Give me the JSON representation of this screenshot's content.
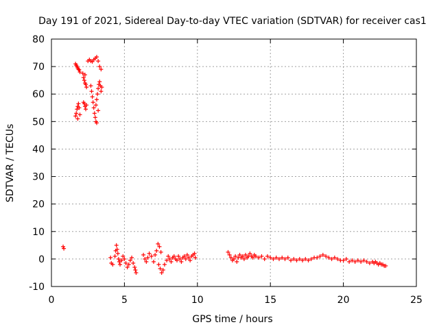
{
  "chart_data": {
    "type": "scatter",
    "title": "Day 191 of 2021, Sidereal Day-to-day VTEC variation (SDTVAR) for receiver cas1",
    "xlabel": "GPS time / hours",
    "ylabel": "SDTVAR / TECUs",
    "xlim": [
      0,
      25
    ],
    "ylim": [
      -10,
      80
    ],
    "xticks": [
      0,
      5,
      10,
      15,
      20,
      25
    ],
    "yticks": [
      -10,
      0,
      10,
      20,
      30,
      40,
      50,
      60,
      70,
      80
    ],
    "grid": true,
    "marker": "+",
    "color": "#ff0000",
    "series": [
      {
        "name": "cas1",
        "points": [
          [
            0.8,
            4.5
          ],
          [
            0.85,
            3.8
          ],
          [
            1.65,
            71.0
          ],
          [
            1.7,
            70.5
          ],
          [
            1.75,
            70.0
          ],
          [
            1.8,
            69.5
          ],
          [
            1.85,
            69.0
          ],
          [
            1.9,
            68.8
          ],
          [
            1.95,
            68.0
          ],
          [
            1.65,
            52.0
          ],
          [
            1.7,
            53.0
          ],
          [
            1.75,
            54.5
          ],
          [
            1.8,
            55.5
          ],
          [
            1.85,
            56.5
          ],
          [
            1.9,
            55.0
          ],
          [
            1.95,
            52.5
          ],
          [
            1.8,
            51.0
          ],
          [
            2.2,
            57.0
          ],
          [
            2.25,
            56.5
          ],
          [
            2.3,
            55.5
          ],
          [
            2.35,
            54.5
          ],
          [
            2.4,
            56.0
          ],
          [
            2.15,
            67.5
          ],
          [
            2.2,
            66.0
          ],
          [
            2.25,
            65.0
          ],
          [
            2.3,
            64.0
          ],
          [
            2.35,
            63.5
          ],
          [
            2.3,
            67.0
          ],
          [
            2.4,
            62.5
          ],
          [
            2.5,
            72.0
          ],
          [
            2.6,
            72.5
          ],
          [
            2.7,
            72.0
          ],
          [
            2.8,
            71.8
          ],
          [
            2.9,
            72.5
          ],
          [
            3.0,
            73.0
          ],
          [
            3.1,
            73.5
          ],
          [
            3.2,
            72.0
          ],
          [
            3.3,
            70.0
          ],
          [
            3.4,
            69.0
          ],
          [
            2.7,
            63.0
          ],
          [
            2.75,
            61.0
          ],
          [
            2.8,
            59.0
          ],
          [
            2.85,
            57.0
          ],
          [
            2.9,
            55.0
          ],
          [
            2.95,
            53.0
          ],
          [
            3.0,
            51.5
          ],
          [
            3.05,
            50.0
          ],
          [
            3.1,
            49.5
          ],
          [
            3.05,
            56.0
          ],
          [
            3.1,
            58.0
          ],
          [
            3.15,
            60.0
          ],
          [
            3.2,
            62.0
          ],
          [
            3.25,
            63.5
          ],
          [
            3.3,
            64.5
          ],
          [
            3.35,
            63.0
          ],
          [
            3.4,
            61.0
          ],
          [
            3.45,
            62.5
          ],
          [
            3.2,
            54.0
          ],
          [
            4.05,
            0.5
          ],
          [
            4.1,
            -1.5
          ],
          [
            4.2,
            -2.0
          ],
          [
            4.35,
            1.0
          ],
          [
            4.4,
            3.0
          ],
          [
            4.45,
            5.0
          ],
          [
            4.5,
            3.5
          ],
          [
            4.55,
            2.0
          ],
          [
            4.6,
            0.0
          ],
          [
            4.65,
            -1.0
          ],
          [
            4.7,
            -2.0
          ],
          [
            4.8,
            -0.5
          ],
          [
            4.9,
            1.0
          ],
          [
            5.0,
            0.0
          ],
          [
            5.1,
            -1.5
          ],
          [
            5.2,
            -3.0
          ],
          [
            5.3,
            -2.0
          ],
          [
            5.4,
            -0.5
          ],
          [
            5.5,
            0.5
          ],
          [
            5.6,
            -1.5
          ],
          [
            5.7,
            -3.0
          ],
          [
            5.75,
            -4.0
          ],
          [
            5.8,
            -5.0
          ],
          [
            6.3,
            1.5
          ],
          [
            6.4,
            0.0
          ],
          [
            6.5,
            -1.0
          ],
          [
            6.6,
            0.5
          ],
          [
            6.7,
            2.0
          ],
          [
            6.85,
            1.0
          ],
          [
            7.0,
            -1.0
          ],
          [
            7.1,
            1.5
          ],
          [
            7.2,
            3.0
          ],
          [
            7.3,
            5.5
          ],
          [
            7.4,
            4.5
          ],
          [
            7.5,
            2.5
          ],
          [
            7.35,
            -2.0
          ],
          [
            7.45,
            -3.5
          ],
          [
            7.55,
            -5.0
          ],
          [
            7.65,
            -4.0
          ],
          [
            7.75,
            -2.0
          ],
          [
            7.9,
            -0.5
          ],
          [
            8.0,
            1.0
          ],
          [
            8.1,
            0.0
          ],
          [
            8.2,
            -1.0
          ],
          [
            8.3,
            0.5
          ],
          [
            8.4,
            1.0
          ],
          [
            8.5,
            0.0
          ],
          [
            8.6,
            -0.5
          ],
          [
            8.7,
            1.0
          ],
          [
            8.8,
            0.0
          ],
          [
            8.9,
            -1.0
          ],
          [
            9.0,
            0.5
          ],
          [
            9.1,
            1.0
          ],
          [
            9.2,
            0.0
          ],
          [
            9.3,
            1.5
          ],
          [
            9.4,
            0.5
          ],
          [
            9.5,
            -0.5
          ],
          [
            9.6,
            1.0
          ],
          [
            9.7,
            1.5
          ],
          [
            9.8,
            2.0
          ],
          [
            9.85,
            0.5
          ],
          [
            12.1,
            2.5
          ],
          [
            12.2,
            1.5
          ],
          [
            12.3,
            0.5
          ],
          [
            12.4,
            -0.5
          ],
          [
            12.5,
            0.0
          ],
          [
            12.6,
            1.0
          ],
          [
            12.7,
            -1.0
          ],
          [
            12.8,
            0.5
          ],
          [
            12.9,
            1.5
          ],
          [
            13.0,
            0.5
          ],
          [
            13.1,
            1.0
          ],
          [
            13.2,
            0.0
          ],
          [
            13.3,
            1.5
          ],
          [
            13.4,
            0.5
          ],
          [
            13.5,
            1.0
          ],
          [
            13.6,
            2.0
          ],
          [
            13.7,
            1.0
          ],
          [
            13.8,
            0.5
          ],
          [
            13.9,
            1.5
          ],
          [
            14.0,
            1.0
          ],
          [
            14.2,
            0.5
          ],
          [
            14.4,
            1.0
          ],
          [
            14.6,
            0.0
          ],
          [
            14.8,
            1.0
          ],
          [
            15.0,
            0.5
          ],
          [
            15.2,
            0.0
          ],
          [
            15.4,
            0.5
          ],
          [
            15.6,
            0.0
          ],
          [
            15.8,
            0.5
          ],
          [
            16.0,
            0.0
          ],
          [
            16.2,
            0.5
          ],
          [
            16.4,
            -0.5
          ],
          [
            16.6,
            0.0
          ],
          [
            16.8,
            -0.5
          ],
          [
            17.0,
            0.0
          ],
          [
            17.2,
            -0.5
          ],
          [
            17.4,
            0.0
          ],
          [
            17.6,
            -0.5
          ],
          [
            17.8,
            0.0
          ],
          [
            18.0,
            0.5
          ],
          [
            18.2,
            0.5
          ],
          [
            18.4,
            1.0
          ],
          [
            18.6,
            1.5
          ],
          [
            18.8,
            1.0
          ],
          [
            19.0,
            0.5
          ],
          [
            19.2,
            0.0
          ],
          [
            19.4,
            0.5
          ],
          [
            19.6,
            0.0
          ],
          [
            19.8,
            -0.5
          ],
          [
            20.0,
            -0.5
          ],
          [
            20.2,
            0.0
          ],
          [
            20.4,
            -1.0
          ],
          [
            20.6,
            -0.5
          ],
          [
            20.8,
            -1.0
          ],
          [
            21.0,
            -0.5
          ],
          [
            21.2,
            -1.0
          ],
          [
            21.4,
            -0.5
          ],
          [
            21.6,
            -1.0
          ],
          [
            21.8,
            -1.5
          ],
          [
            22.0,
            -1.0
          ],
          [
            22.1,
            -1.5
          ],
          [
            22.2,
            -1.0
          ],
          [
            22.3,
            -1.5
          ],
          [
            22.4,
            -2.0
          ],
          [
            22.5,
            -1.5
          ],
          [
            22.6,
            -2.0
          ],
          [
            22.7,
            -2.0
          ],
          [
            22.8,
            -2.5
          ],
          [
            22.9,
            -2.5
          ]
        ]
      }
    ]
  }
}
